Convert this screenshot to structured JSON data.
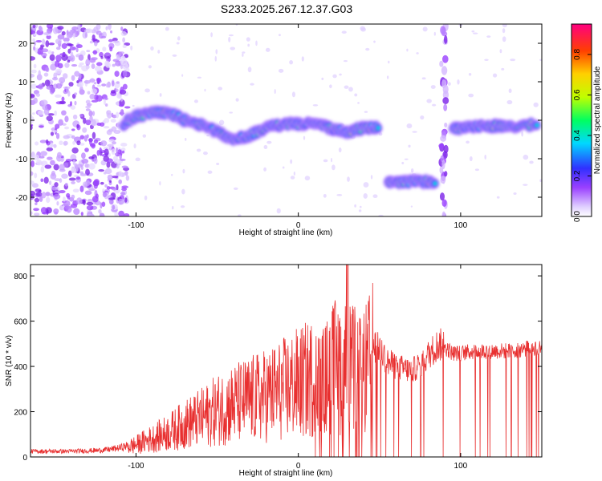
{
  "title": "S233.2025.267.12.37.G03",
  "chart_data": [
    {
      "type": "heatmap",
      "xlabel": "Height of straight line (km)",
      "ylabel": "Frequency (Hz)",
      "xlim": [
        -165,
        150
      ],
      "ylim": [
        -25,
        25
      ],
      "xticks": [
        -100,
        0,
        100
      ],
      "yticks": [
        -20,
        -10,
        0,
        10,
        20
      ],
      "colorbar": {
        "label": "Normalized spectral amplitude",
        "range": [
          0,
          0.95
        ],
        "ticks": [
          0.0,
          0.2,
          0.4,
          0.6,
          0.8
        ]
      },
      "ridges": [
        {
          "x": -108,
          "y": -1
        },
        {
          "x": -100,
          "y": 1
        },
        {
          "x": -90,
          "y": 2
        },
        {
          "x": -80,
          "y": 2
        },
        {
          "x": -70,
          "y": 0
        },
        {
          "x": -60,
          "y": -1
        },
        {
          "x": -50,
          "y": -3
        },
        {
          "x": -40,
          "y": -5
        },
        {
          "x": -30,
          "y": -4
        },
        {
          "x": -20,
          "y": -2
        },
        {
          "x": -10,
          "y": -1
        },
        {
          "x": 0,
          "y": -1
        },
        {
          "x": 10,
          "y": -1
        },
        {
          "x": 20,
          "y": -2
        },
        {
          "x": 30,
          "y": -3
        },
        {
          "x": 40,
          "y": -2
        },
        {
          "x": 50,
          "y": -2
        },
        {
          "x": 55,
          "y": -16
        },
        {
          "x": 65,
          "y": -16
        },
        {
          "x": 75,
          "y": -16
        },
        {
          "x": 85,
          "y": -16
        },
        {
          "x": 95,
          "y": -2
        },
        {
          "x": 105,
          "y": -2
        },
        {
          "x": 115,
          "y": -1.5
        },
        {
          "x": 125,
          "y": -1.5
        },
        {
          "x": 135,
          "y": -1.5
        },
        {
          "x": 148,
          "y": -1
        }
      ]
    },
    {
      "type": "line",
      "xlabel": "Height of straight line (km)",
      "ylabel": "SNR (10 * v/v)",
      "xlim": [
        -165,
        150
      ],
      "ylim": [
        0,
        850
      ],
      "xticks": [
        -100,
        0,
        100
      ],
      "yticks": [
        0,
        200,
        400,
        600,
        800
      ],
      "color": "#e83030",
      "series": [
        {
          "x": [
            -165,
            -140,
            -120,
            -110,
            -100,
            -90,
            -80,
            -70,
            -60,
            -50,
            -40,
            -30,
            -20,
            -10,
            0,
            10,
            14,
            16,
            20,
            25,
            30,
            33,
            36,
            40,
            46,
            50,
            55,
            60,
            65,
            70,
            75,
            80,
            85,
            90,
            95,
            100,
            110,
            120,
            130,
            140,
            150
          ],
          "y": [
            25,
            25,
            30,
            40,
            60,
            90,
            120,
            160,
            190,
            230,
            260,
            280,
            300,
            330,
            360,
            390,
            340,
            370,
            420,
            450,
            440,
            420,
            430,
            400,
            490,
            480,
            420,
            400,
            390,
            380,
            410,
            450,
            490,
            500,
            470,
            470,
            480,
            480,
            480,
            490,
            500
          ]
        }
      ]
    }
  ]
}
